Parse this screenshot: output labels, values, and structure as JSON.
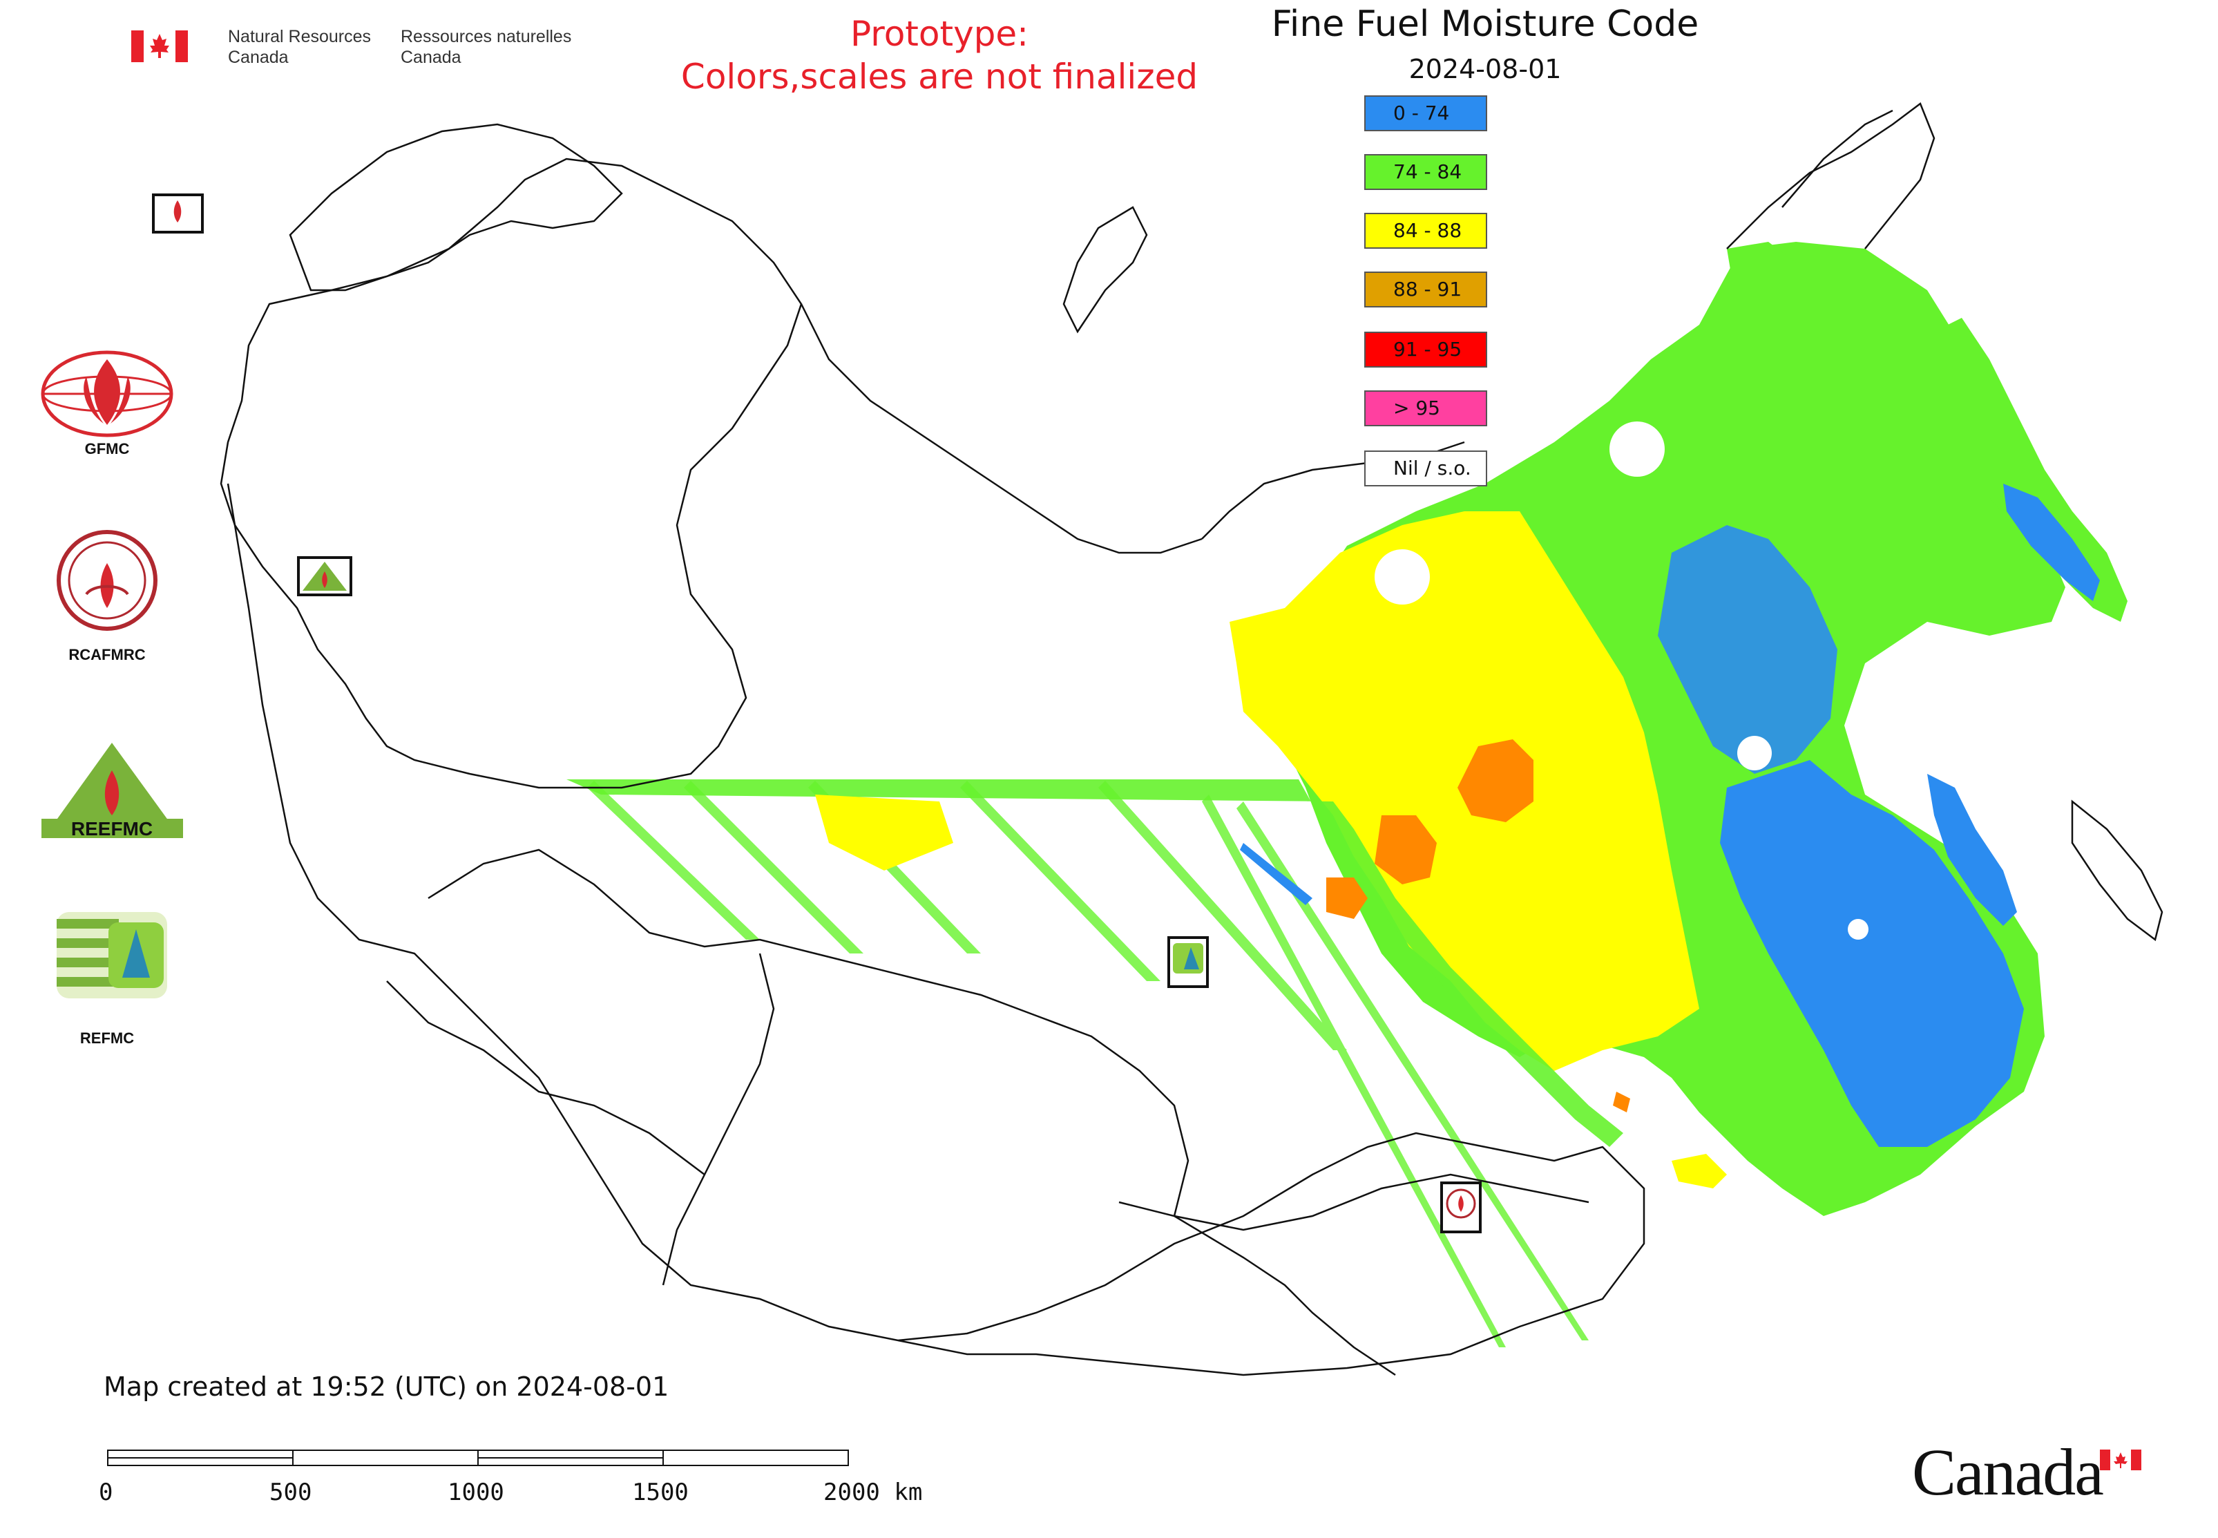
{
  "header": {
    "dept_en_line1": "Natural Resources",
    "dept_en_line2": "Canada",
    "dept_fr_line1": "Ressources naturelles",
    "dept_fr_line2": "Canada",
    "prototype_line1": "Prototype:",
    "prototype_line2": "Colors,scales are not finalized",
    "title": "Fine Fuel Moisture Code",
    "date": "2024-08-01"
  },
  "legend": [
    {
      "label": "0 - 74",
      "color": "#2b8cf0"
    },
    {
      "label": "74 - 84",
      "color": "#66f22c"
    },
    {
      "label": "84 - 88",
      "color": "#ffff00"
    },
    {
      "label": "88 - 91",
      "color": "#e0a000"
    },
    {
      "label": "91 - 95",
      "color": "#ff0000"
    },
    {
      "label": "> 95",
      "color": "#ff40a0"
    },
    {
      "label": "Nil / s.o.",
      "color": "#ffffff"
    }
  ],
  "organizations": [
    {
      "label": "GFMC",
      "icon": "gfmc-logo-icon"
    },
    {
      "label": "RCAFMRC",
      "icon": "rcafmrc-logo-icon"
    },
    {
      "label": "",
      "icon": "reefmc-logo-icon",
      "logo_text": "REEFMC"
    },
    {
      "label": "REFMC",
      "icon": "refmc-logo-icon"
    }
  ],
  "footer": {
    "created": "Map created at 19:52 (UTC) on 2024-08-01",
    "scale_labels": [
      "0",
      "500",
      "1000",
      "1500",
      "2000 km"
    ],
    "wordmark": "Canada"
  },
  "colors": {
    "blue": "#2b8cf0",
    "green": "#66f22c",
    "yellow": "#ffff00",
    "amber": "#e0a000",
    "orange": "#ff8800",
    "red": "#ff0000",
    "pink": "#ff40a0",
    "boundary": "#111111",
    "prototype_text": "#e8202a"
  }
}
